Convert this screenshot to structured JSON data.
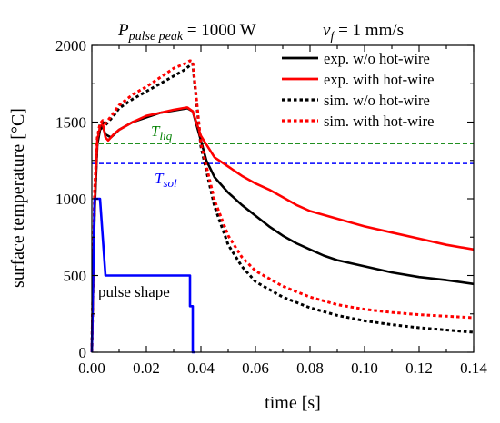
{
  "chart_data": {
    "type": "line",
    "title_params": [
      {
        "symbol": "P",
        "subscript": "pulse peak",
        "value": " = 1000 W"
      },
      {
        "symbol": "v",
        "subscript": "f",
        "value": " = 1 mm/s"
      }
    ],
    "xlabel": "time [s]",
    "ylabel": "surface temperature [°C]",
    "xlim": [
      0,
      0.14
    ],
    "ylim": [
      0,
      2000
    ],
    "xticks": [
      "0.00",
      "0.02",
      "0.04",
      "0.06",
      "0.08",
      "0.10",
      "0.12",
      "0.14"
    ],
    "yticks": [
      "0",
      "500",
      "1000",
      "1500",
      "2000"
    ],
    "xtick_values": [
      0,
      0.02,
      0.04,
      0.06,
      0.08,
      0.1,
      0.12,
      0.14
    ],
    "ytick_values": [
      0,
      500,
      1000,
      1500,
      2000
    ],
    "grid": false,
    "legend_position": "top-right",
    "series": [
      {
        "name": "exp. w/o hot-wire",
        "color": "#000000",
        "style": "solid",
        "x": [
          0,
          0.001,
          0.002,
          0.003,
          0.004,
          0.005,
          0.007,
          0.01,
          0.015,
          0.02,
          0.025,
          0.03,
          0.035,
          0.037,
          0.04,
          0.042,
          0.045,
          0.05,
          0.055,
          0.06,
          0.065,
          0.07,
          0.075,
          0.08,
          0.085,
          0.09,
          0.095,
          0.1,
          0.11,
          0.12,
          0.13,
          0.14
        ],
        "y": [
          0,
          900,
          1350,
          1450,
          1470,
          1420,
          1400,
          1450,
          1500,
          1530,
          1560,
          1575,
          1590,
          1570,
          1380,
          1250,
          1140,
          1040,
          960,
          890,
          820,
          760,
          710,
          670,
          630,
          600,
          580,
          560,
          520,
          490,
          470,
          445
        ]
      },
      {
        "name": "exp. with hot-wire",
        "color": "#ff0000",
        "style": "solid",
        "x": [
          0,
          0.001,
          0.002,
          0.003,
          0.004,
          0.005,
          0.006,
          0.008,
          0.01,
          0.015,
          0.02,
          0.025,
          0.03,
          0.035,
          0.037,
          0.04,
          0.045,
          0.05,
          0.055,
          0.06,
          0.065,
          0.07,
          0.075,
          0.08,
          0.09,
          0.1,
          0.11,
          0.12,
          0.13,
          0.14
        ],
        "y": [
          0,
          950,
          1380,
          1470,
          1490,
          1400,
          1380,
          1420,
          1450,
          1500,
          1540,
          1560,
          1580,
          1595,
          1570,
          1410,
          1270,
          1210,
          1150,
          1100,
          1060,
          1010,
          960,
          920,
          870,
          820,
          780,
          740,
          700,
          670
        ]
      },
      {
        "name": "sim. w/o hot-wire",
        "color": "#000000",
        "style": "dotted",
        "x": [
          0,
          0.001,
          0.002,
          0.003,
          0.004,
          0.005,
          0.008,
          0.01,
          0.015,
          0.02,
          0.025,
          0.03,
          0.034,
          0.036,
          0.037,
          0.04,
          0.045,
          0.05,
          0.055,
          0.06,
          0.07,
          0.08,
          0.09,
          0.1,
          0.11,
          0.12,
          0.13,
          0.14
        ],
        "y": [
          0,
          1000,
          1380,
          1480,
          1500,
          1480,
          1540,
          1590,
          1650,
          1700,
          1750,
          1800,
          1840,
          1870,
          1880,
          1340,
          950,
          700,
          560,
          460,
          360,
          290,
          240,
          205,
          180,
          160,
          145,
          130
        ]
      },
      {
        "name": "sim. with hot-wire",
        "color": "#ff0000",
        "style": "dotted",
        "x": [
          0,
          0.001,
          0.002,
          0.003,
          0.004,
          0.005,
          0.008,
          0.01,
          0.015,
          0.02,
          0.025,
          0.03,
          0.034,
          0.036,
          0.037,
          0.04,
          0.045,
          0.05,
          0.055,
          0.06,
          0.07,
          0.08,
          0.09,
          0.1,
          0.11,
          0.12,
          0.13,
          0.14
        ],
        "y": [
          0,
          1050,
          1400,
          1490,
          1510,
          1490,
          1560,
          1610,
          1680,
          1730,
          1790,
          1850,
          1880,
          1900,
          1895,
          1360,
          990,
          760,
          620,
          530,
          430,
          360,
          310,
          280,
          260,
          245,
          235,
          225
        ]
      },
      {
        "name": "pulse shape",
        "color": "#0000ff",
        "style": "solid",
        "x": [
          0,
          0.0005,
          0.001,
          0.003,
          0.005,
          0.005,
          0.035,
          0.036,
          0.036,
          0.037,
          0.037,
          0.038
        ],
        "y": [
          0,
          500,
          1000,
          1000,
          500,
          500,
          500,
          500,
          300,
          300,
          0,
          0
        ]
      }
    ],
    "reference_lines": [
      {
        "symbol": "T",
        "subscript": "liq",
        "y": 1360,
        "color": "#008000",
        "style": "dashed"
      },
      {
        "symbol": "T",
        "subscript": "sol",
        "y": 1230,
        "color": "#0000ff",
        "style": "dashed"
      }
    ],
    "annotations": [
      {
        "text": "pulse shape"
      }
    ]
  }
}
